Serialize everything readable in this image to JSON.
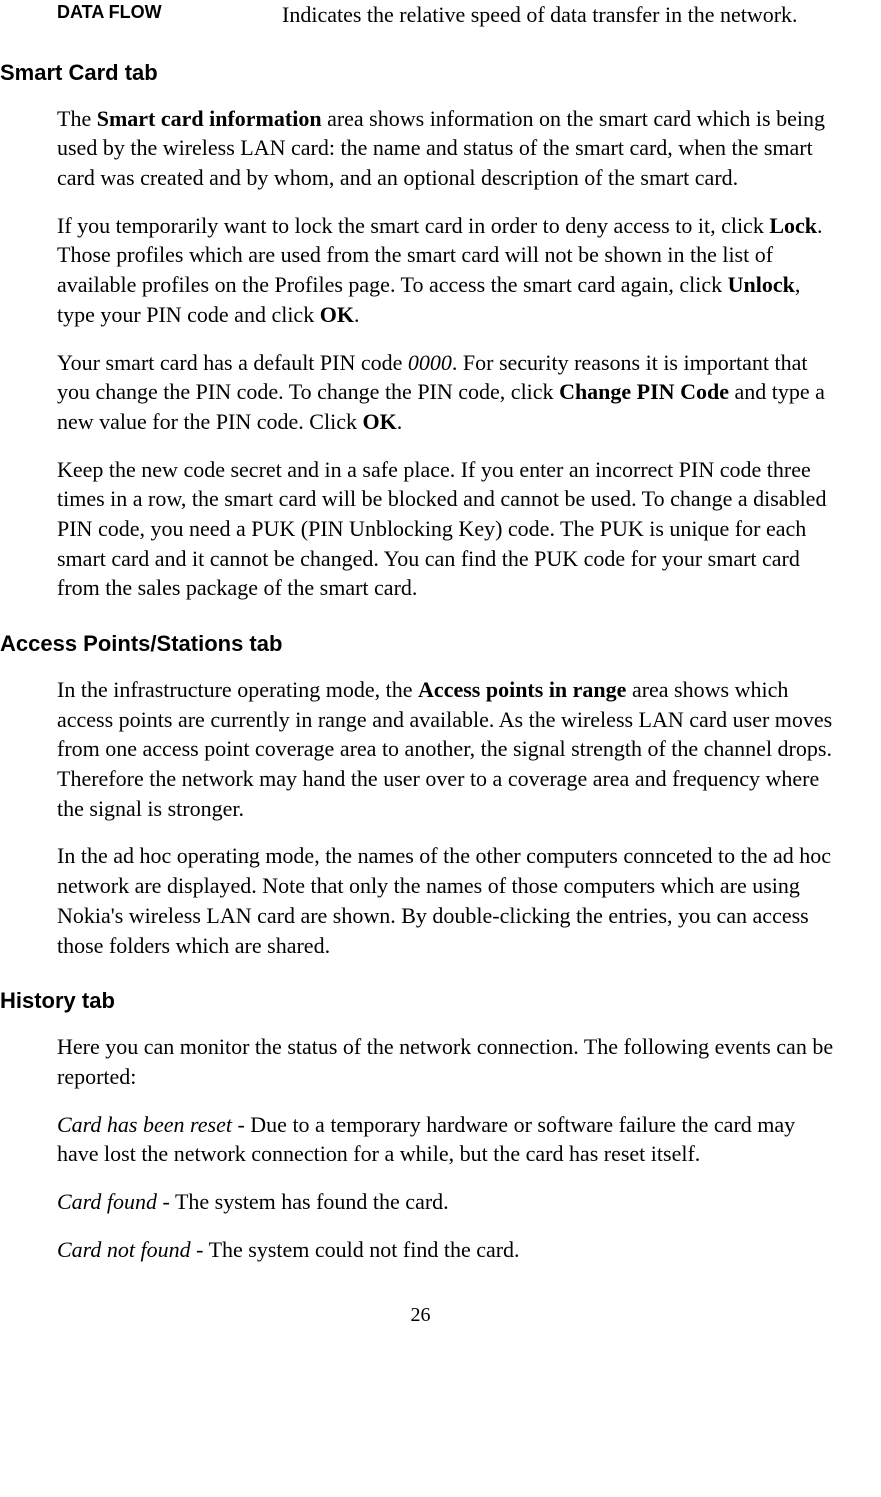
{
  "dataRow": {
    "label": "DATA FLOW",
    "desc": "Indicates the relative speed of data transfer in the network."
  },
  "smartCard": {
    "heading": "Smart Card tab",
    "p1_1": "The ",
    "p1_b1": "Smart card information",
    "p1_2": " area shows information on the smart card which is being used by the wireless LAN card: the name and status of the smart card, when the smart card was created and by whom, and an optional description of the smart card.",
    "p2_1": "If you temporarily want to lock the smart card in order to deny access to it, click ",
    "p2_b1": "Lock",
    "p2_2": ". Those profiles which are used from the smart card will not be shown in the list of available profiles on the Profiles page. To access the smart card again, click ",
    "p2_b2": "Unlock",
    "p2_3": ", type your PIN code and click ",
    "p2_b3": "OK",
    "p2_4": ".",
    "p3_1": "Your smart card has a default PIN code ",
    "p3_i1": "0000",
    "p3_2": ". For security reasons it is important that you change the PIN code. To change the PIN code, click ",
    "p3_b1": "Change PIN Code",
    "p3_3": " and type a new value for the PIN code. Click ",
    "p3_b2": "OK",
    "p3_4": ".",
    "p4": "Keep the new code secret and in a safe place. If you enter an incorrect PIN code three times in a row, the smart card will be blocked and cannot be used. To change a disabled PIN code, you need a PUK (PIN Unblocking Key) code. The PUK is unique for each smart card and it cannot be changed. You can find the PUK code for your smart card from the sales package of the smart card."
  },
  "accessPoints": {
    "heading": "Access Points/Stations tab",
    "p1_1": "In the infrastructure operating mode, the ",
    "p1_b1": "Access points in range",
    "p1_2": " area shows which access points are currently in range and available. As the wireless LAN card user moves from one access point coverage area to another, the signal strength of the channel drops. Therefore the network may hand the user over to a coverage area and frequency where the signal is stronger.",
    "p2": "In the ad hoc operating mode, the names of the other computers connceted to the ad hoc network are displayed. Note that only the names of those computers which are using Nokia's wireless LAN card are shown. By double-clicking the entries, you can access those folders which are shared."
  },
  "history": {
    "heading": "History tab",
    "p1": "Here you can monitor the status of the network connection. The following events can be reported:",
    "e1_i": "Card has been reset",
    "e1_t": " - Due to a temporary hardware or software failure the card may have lost the network connection for a while, but the card has reset itself.",
    "e2_i": "Card found",
    "e2_t": " - The system has found the card.",
    "e3_i": "Card not found",
    "e3_t": " - The system could not find the card."
  },
  "pageNumber": "26"
}
